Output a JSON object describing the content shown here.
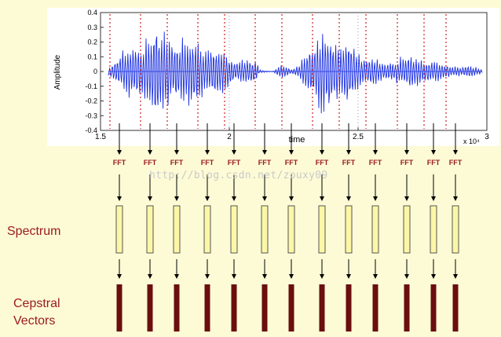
{
  "waveform_panel": {
    "ylabel": "Amplitude",
    "xlabel": "time",
    "exponent": "x 10⁴",
    "yticks": [
      "0.4",
      "0.3",
      "0.2",
      "0.1",
      "0",
      "-0.1",
      "-0.2",
      "-0.3",
      "-0.4"
    ],
    "xticks": [
      "1.5",
      "2",
      "2.5",
      "3"
    ],
    "ylim": [
      -0.4,
      0.4
    ],
    "xlim": [
      1.5,
      3
    ],
    "grid": "dotted",
    "trace_color": "#1a2fe0",
    "marker_color": "#d21e1e"
  },
  "frames": {
    "fft_label": "FFT",
    "count": 13
  },
  "labels": {
    "spectrum": "Spectrum",
    "cepstral_line1": "Cepstral",
    "cepstral_line2": "Vectors"
  },
  "watermark": "http://blog.csdn.net/zouxy09",
  "colors": {
    "background": "#fdfbd6",
    "label_red": "#9b1b22",
    "spectrum_fill": "#fbf7a6",
    "spectrum_stroke": "#555555",
    "cepstral_fill": "#6a0e0e"
  }
}
